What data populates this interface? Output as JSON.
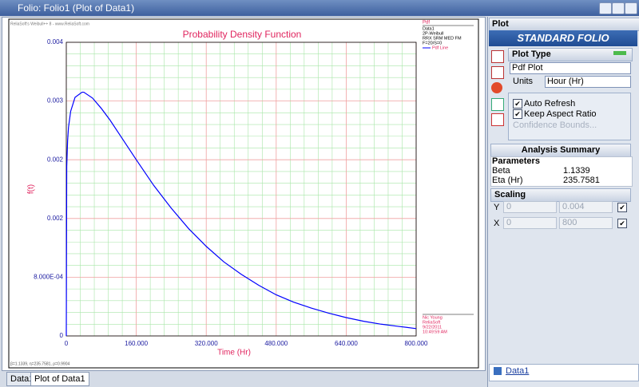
{
  "window": {
    "title": "Folio: Folio1 (Plot of Data1)"
  },
  "chart_data": {
    "type": "line",
    "title": "Probability Density Function",
    "watermark": "ReliaSoft's Weibull++ 8 - www.ReliaSoft.com",
    "x_label": "Time (Hr)",
    "y_label": "f(t)",
    "x": [
      0,
      1,
      3,
      5,
      10,
      20,
      36,
      40,
      60,
      80,
      100,
      120,
      160,
      200,
      240,
      280,
      320,
      360,
      400,
      440,
      480,
      520,
      560,
      600,
      640,
      680,
      720,
      760,
      800
    ],
    "series": [
      {
        "name": "Pdf Line",
        "color": "#0000ff",
        "values": [
          0,
          0.00231,
          0.00266,
          0.00284,
          0.00306,
          0.00325,
          0.00332,
          0.00332,
          0.00324,
          0.0031,
          0.00294,
          0.00276,
          0.0024,
          0.00205,
          0.00174,
          0.00146,
          0.00122,
          0.00101,
          0.00084,
          0.00069,
          0.00056,
          0.00046,
          0.00038,
          0.00031,
          0.00025,
          0.0002,
          0.00016,
          0.00013,
          0.0001
        ]
      }
    ],
    "xlim": [
      0,
      800
    ],
    "ylim": [
      0,
      0.004
    ],
    "xticks": [
      0,
      {
        "value": 160,
        "label": "160.000"
      },
      {
        "value": 320,
        "label": "320.000"
      },
      {
        "value": 480,
        "label": "480.000"
      },
      {
        "value": 640,
        "label": "640.000"
      },
      {
        "value": 800,
        "label": "800.000"
      }
    ],
    "yticks": [
      0,
      {
        "value": 0.0008,
        "label": "8.000E-04"
      },
      {
        "value": 0.0016,
        "label": "0.002"
      },
      {
        "value": 0.0024,
        "label": "0.002"
      },
      {
        "value": 0.0032,
        "label": "0.003"
      },
      0.004
    ],
    "grid": true,
    "legend": {
      "header": "Pdf",
      "lines": [
        "Data1",
        "2P-Weibull",
        "RRX SRM MED FM",
        "F=20/S=0"
      ]
    },
    "signature": [
      "Nic Young",
      "ReliaSoft",
      "9/22/2011",
      "10:49:59 AM"
    ],
    "stats_line": "β=1.1339, η=235.7581, ρ=0.9904"
  },
  "tabs": [
    "Data1",
    "Plot of Data1"
  ],
  "panel": {
    "title": "Plot",
    "banner": "STANDARD FOLIO",
    "plot_type": {
      "header": "Plot Type",
      "selected": "Pdf Plot",
      "units_label": "Units",
      "units": "Hour (Hr)",
      "options": [
        "Auto Refresh",
        "Keep Aspect Ratio"
      ],
      "link": "Confidence Bounds..."
    },
    "summary": {
      "header": "Analysis Summary",
      "subheader": "Parameters",
      "rows": [
        [
          "Beta",
          "1.1339"
        ],
        [
          "Eta (Hr)",
          "235.7581"
        ]
      ]
    },
    "scaling": {
      "header": "Scaling",
      "rows": [
        [
          "Y",
          "0",
          "0.004"
        ],
        [
          "X",
          "0",
          "800"
        ]
      ]
    },
    "footer_link": "Data1"
  }
}
